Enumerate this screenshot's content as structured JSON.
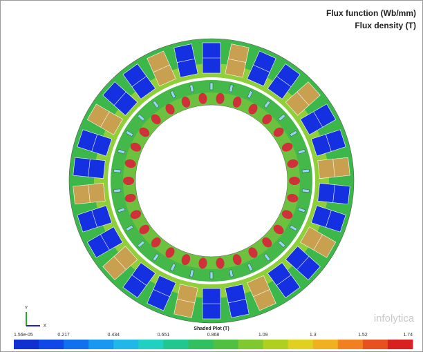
{
  "header": {
    "title": "Flux function (Wb/mm)",
    "subtitle": "Flux density (T)"
  },
  "colorbar": {
    "title": "Shaded Plot (T)",
    "ticks": [
      "1.56e-05",
      "0.217",
      "0.434",
      "0.651",
      "0.868",
      "1.09",
      "1.3",
      "1.52",
      "1.74"
    ]
  },
  "triad": {
    "x": "X",
    "y": "Y"
  },
  "watermark": "infolytica"
}
